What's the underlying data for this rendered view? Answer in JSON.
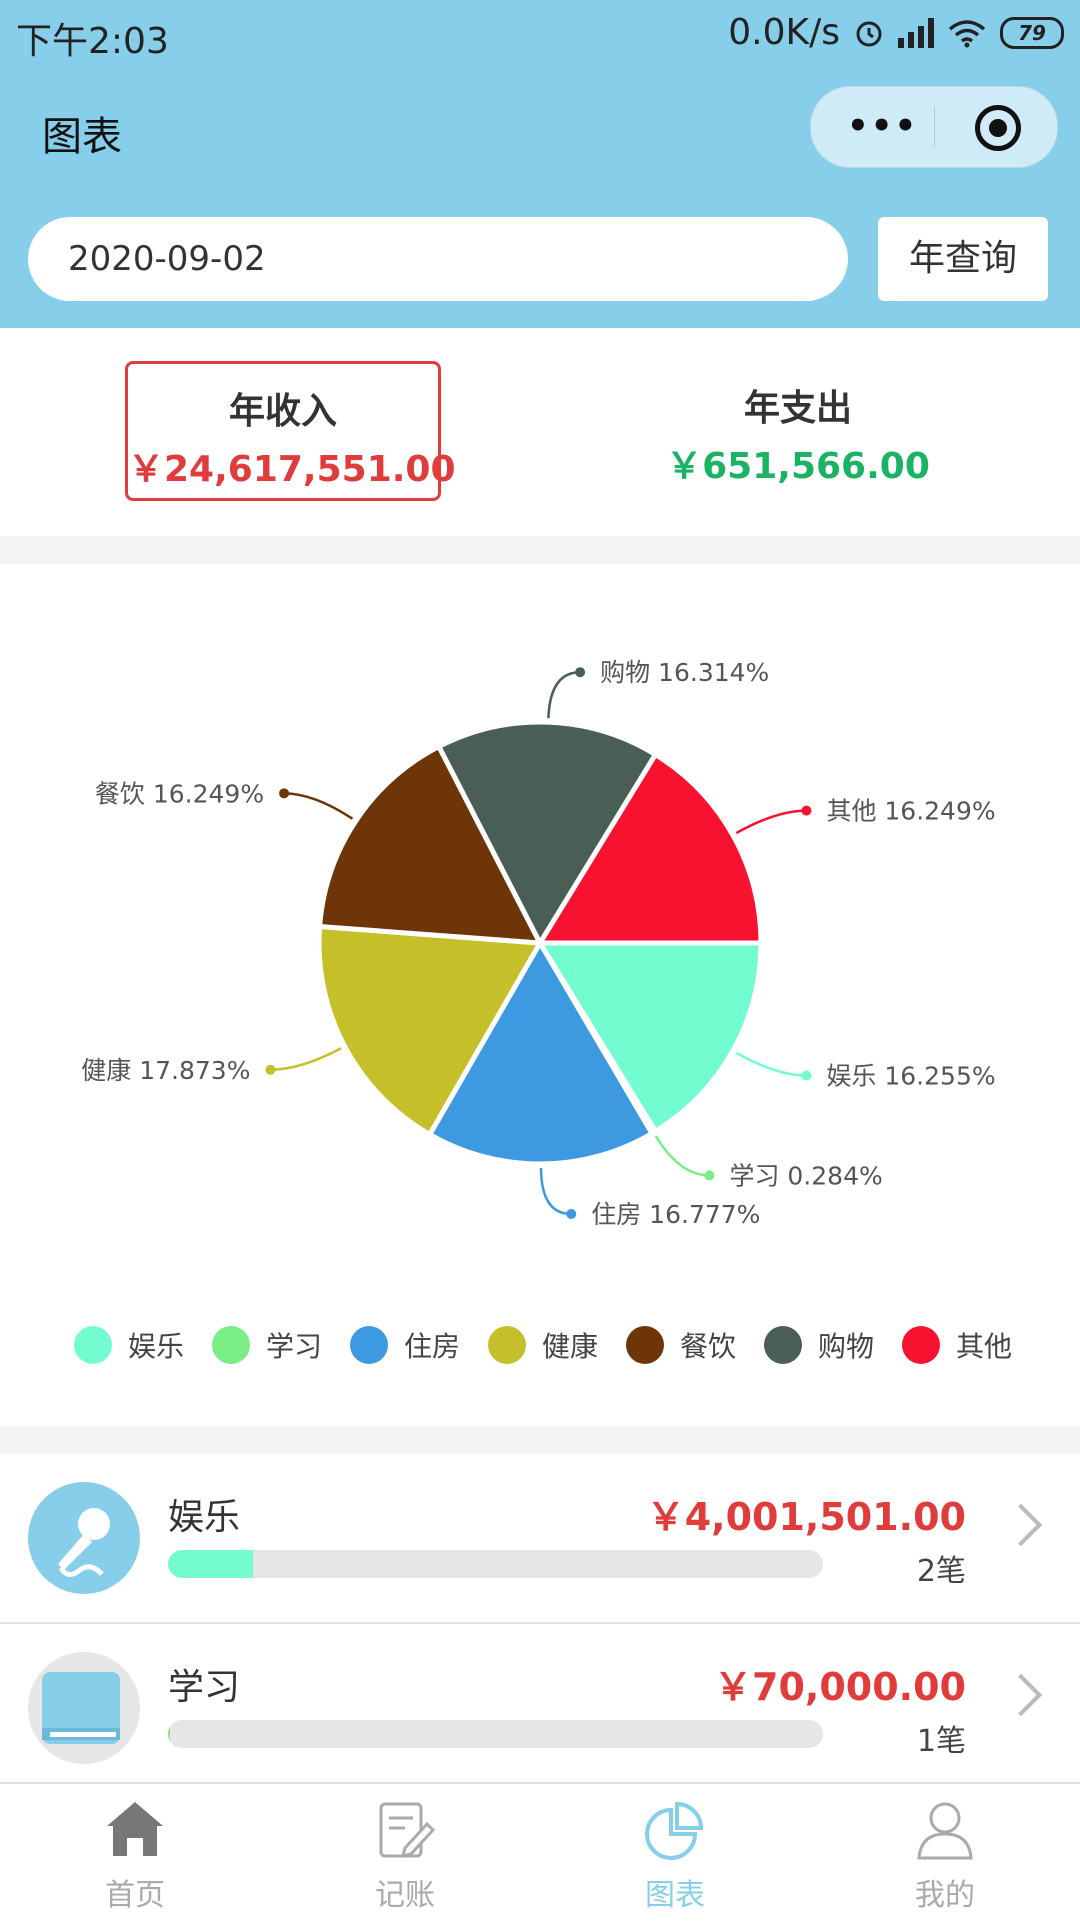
{
  "status_bar": {
    "time": "下午2:03",
    "network_speed": "0.0K/s",
    "battery": "79"
  },
  "navbar": {
    "title": "图表"
  },
  "search": {
    "date_value": "2020-09-02",
    "query_button": "年查询"
  },
  "summary": {
    "income_label": "年收入",
    "income_value": "￥24,617,551.00",
    "expense_label": "年支出",
    "expense_value": "￥651,566.00"
  },
  "chart_data": {
    "type": "pie",
    "categories": [
      "娱乐",
      "学习",
      "住房",
      "健康",
      "餐饮",
      "购物",
      "其他"
    ],
    "values": [
      16.255,
      0.284,
      16.777,
      17.873,
      16.249,
      16.314,
      16.249
    ],
    "labels": [
      "娱乐 16.255%",
      "学习 0.284%",
      "住房 16.777%",
      "健康 17.873%",
      "餐饮 16.249%",
      "购物 16.314%",
      "其他 16.249%"
    ],
    "colors": [
      "#73fcd0",
      "#7aed85",
      "#3d99e0",
      "#c5c02a",
      "#6e3509",
      "#495e55",
      "#f71230"
    ],
    "legend": "bottom"
  },
  "list": [
    {
      "name": "娱乐",
      "amount": "￥4,001,501.00",
      "count": "2笔",
      "progress": 0.13,
      "color": "#73fcd0",
      "icon": "microphone-icon"
    },
    {
      "name": "学习",
      "amount": "￥70,000.00",
      "count": "1笔",
      "progress": 0.003,
      "color": "#7aed85",
      "icon": "book-icon"
    }
  ],
  "tabs": [
    {
      "label": "首页",
      "icon": "home-icon",
      "active": false
    },
    {
      "label": "记账",
      "icon": "edit-note-icon",
      "active": false
    },
    {
      "label": "图表",
      "icon": "pie-chart-icon",
      "active": true
    },
    {
      "label": "我的",
      "icon": "user-icon",
      "active": false
    }
  ]
}
